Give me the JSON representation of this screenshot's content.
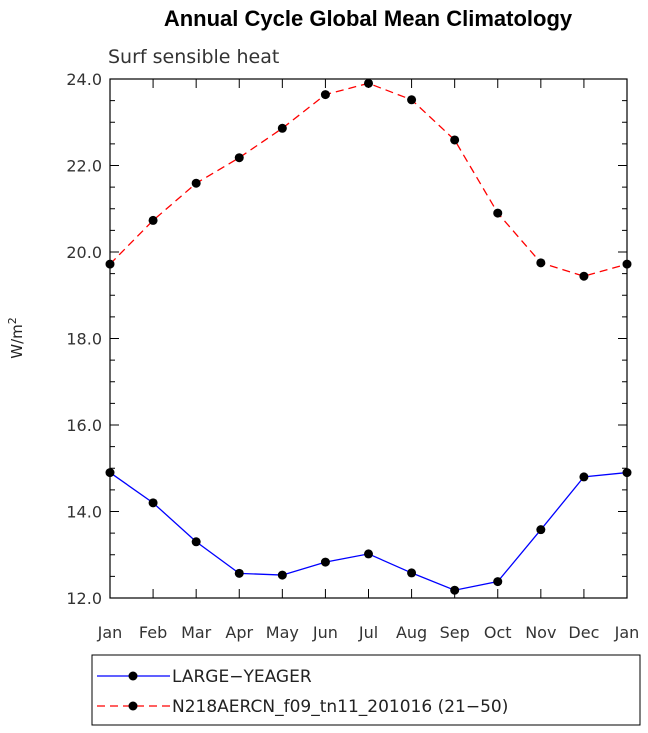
{
  "chart_data": {
    "type": "line",
    "title": "Annual Cycle Global Mean Climatology",
    "subtitle": "Surf sensible heat",
    "ylabel": "W/m",
    "ylabel_sup": "2",
    "xlabel": "",
    "categories": [
      "Jan",
      "Feb",
      "Mar",
      "Apr",
      "May",
      "Jun",
      "Jul",
      "Aug",
      "Sep",
      "Oct",
      "Nov",
      "Dec",
      "Jan"
    ],
    "ylim": [
      12.0,
      24.0
    ],
    "yticks": [
      "12.0",
      "14.0",
      "16.0",
      "18.0",
      "20.0",
      "22.0",
      "24.0"
    ],
    "series": [
      {
        "name": "LARGE−YEAGER",
        "color": "#0000ff",
        "dash": "solid",
        "values": [
          14.9,
          14.2,
          13.3,
          12.57,
          12.53,
          12.83,
          13.02,
          12.58,
          12.18,
          12.38,
          13.58,
          14.8,
          14.9
        ]
      },
      {
        "name": "N218AERCN_f09_tn11_201016 (21−50)",
        "color": "#ff0000",
        "dash": "dashed",
        "values": [
          19.72,
          20.73,
          21.59,
          22.18,
          22.86,
          23.64,
          23.9,
          23.52,
          22.59,
          20.9,
          19.75,
          19.44,
          19.72
        ]
      }
    ],
    "legend_position": "bottom-left"
  }
}
